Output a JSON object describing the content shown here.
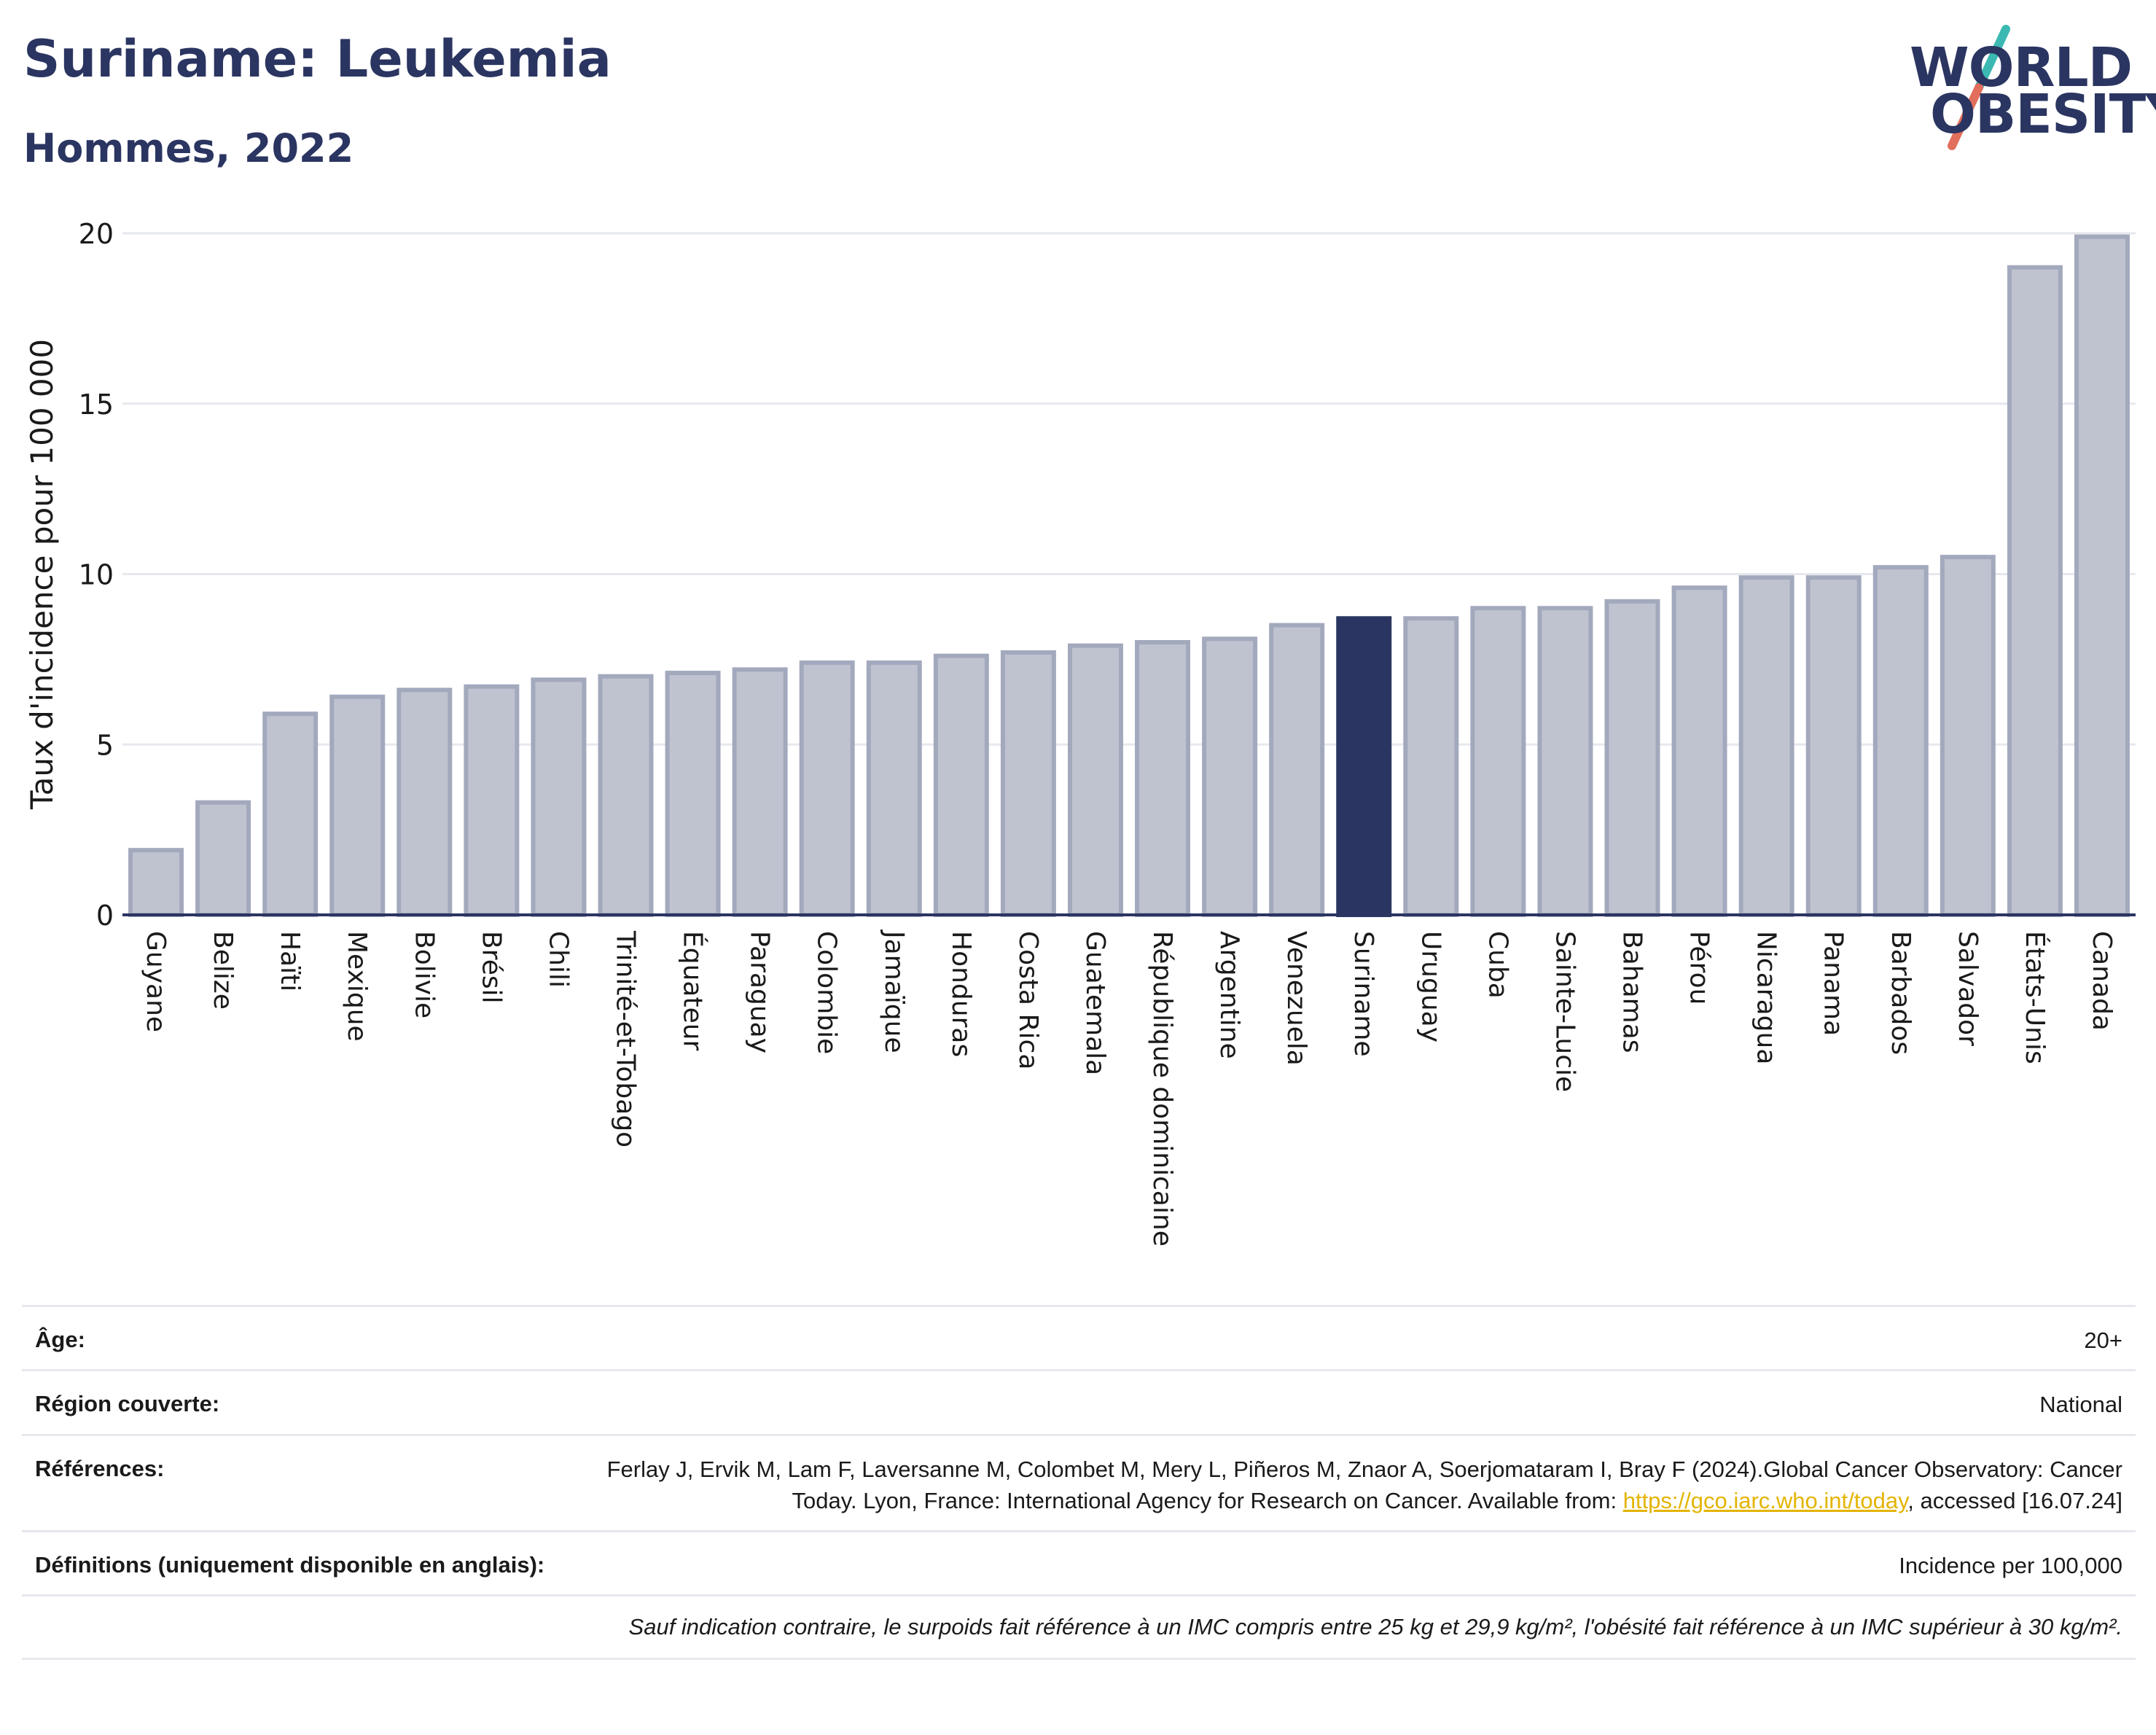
{
  "header": {
    "title": "Suriname: Leukemia",
    "subtitle": "Hommes, 2022",
    "logo_line1": "WORLD",
    "logo_line2": "OBESITY"
  },
  "colors": {
    "bar": "#bfc3d0",
    "bar_border": "#a3a9bd",
    "highlight": "#2b3561",
    "grid": "#e6e8ee",
    "axis": "#2b3561",
    "logo_teal": "#3cb8b2",
    "logo_red": "#e26e5c"
  },
  "chart_data": {
    "type": "bar",
    "ylabel": "Taux d'incidence pour 100 000",
    "ylim": [
      0,
      20
    ],
    "yticks": [
      0,
      5,
      10,
      15,
      20
    ],
    "grid": true,
    "highlight": "Suriname",
    "categories": [
      "Guyane",
      "Belize",
      "Haïti",
      "Mexique",
      "Bolivie",
      "Brésil",
      "Chili",
      "Trinité-et-Tobago",
      "Équateur",
      "Paraguay",
      "Colombie",
      "Jamaïque",
      "Honduras",
      "Costa Rica",
      "Guatemala",
      "République dominicaine",
      "Argentine",
      "Venezuela",
      "Suriname",
      "Uruguay",
      "Cuba",
      "Sainte-Lucie",
      "Bahamas",
      "Pérou",
      "Nicaragua",
      "Panama",
      "Barbados",
      "Salvador",
      "États-Unis",
      "Canada"
    ],
    "values": [
      1.9,
      3.3,
      5.9,
      6.4,
      6.6,
      6.7,
      6.9,
      7.0,
      7.1,
      7.2,
      7.4,
      7.4,
      7.6,
      7.7,
      7.9,
      8.0,
      8.1,
      8.5,
      8.7,
      8.7,
      9.0,
      9.0,
      9.2,
      9.6,
      9.9,
      9.9,
      10.2,
      10.5,
      19.0,
      19.9
    ]
  },
  "info": {
    "age_label": "Âge:",
    "age_value": "20+",
    "region_label": "Région couverte:",
    "region_value": "National",
    "ref_label": "Références:",
    "ref_text_1": "Ferlay J, Ervik M, Lam F, Laversanne M, Colombet M, Mery L, Piñeros M, Znaor A, Soerjomataram I, Bray F (2024).Global Cancer Observatory: Cancer Today. Lyon, France: International Agency for Research on Cancer. Available from: ",
    "ref_link": "https://gco.iarc.who.int/today",
    "ref_text_2": ", accessed [16.07.24]",
    "def_label": "Définitions (uniquement disponible en anglais):",
    "def_value": "Incidence per 100,000",
    "footnote": "Sauf indication contraire, le surpoids fait référence à un IMC compris entre 25 kg et 29,9 kg/m², l'obésité fait référence à un IMC supérieur à 30 kg/m²."
  }
}
